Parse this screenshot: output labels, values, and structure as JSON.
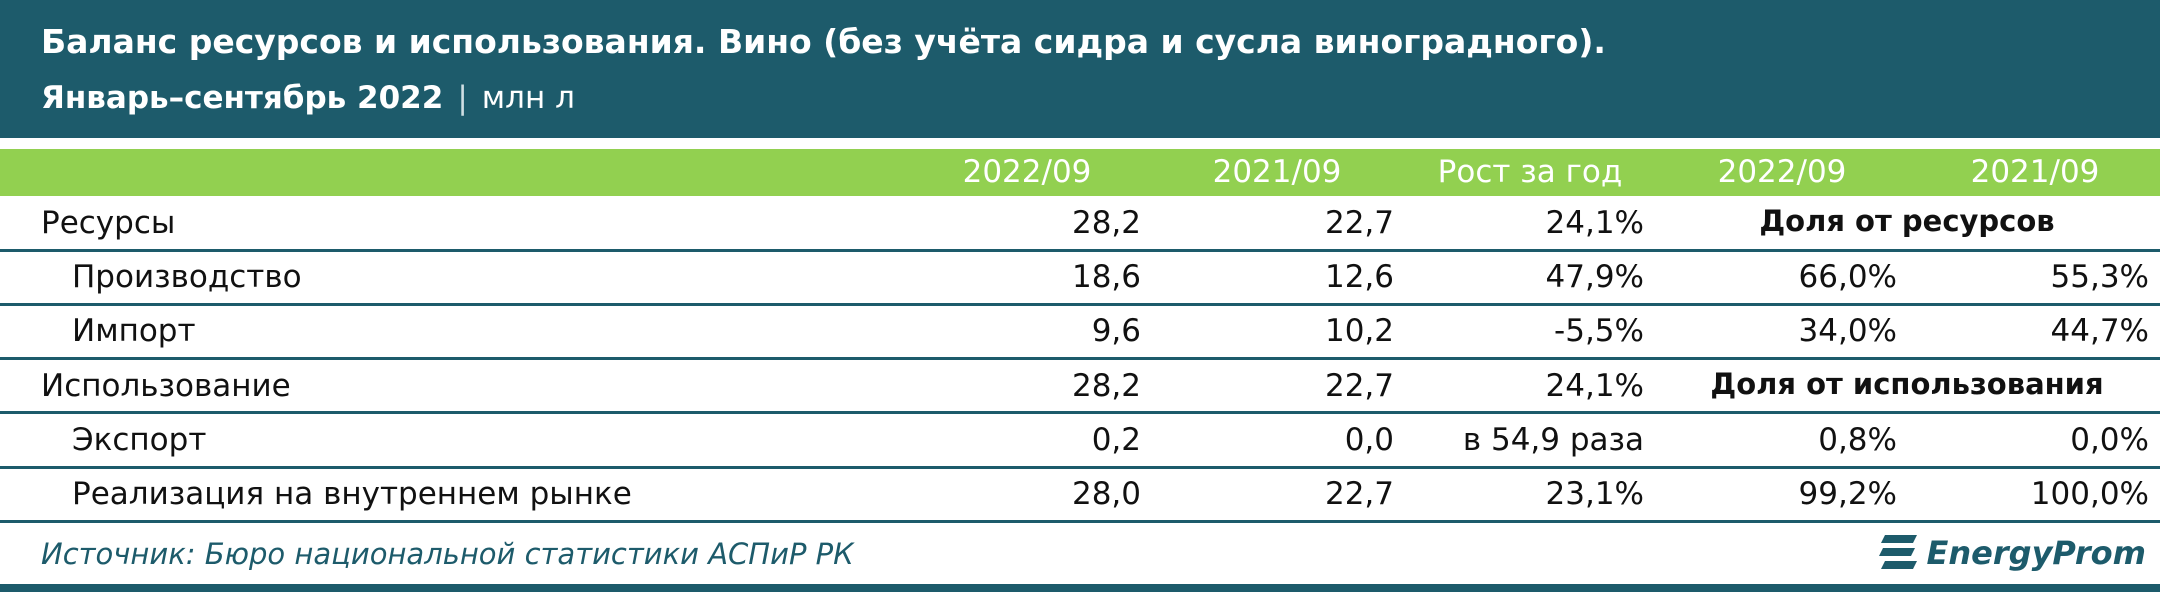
{
  "header": {
    "title": "Баланс ресурсов и использования. Вино (без учёта сидра и сусла виноградного).",
    "subtitle": "Январь–сентябрь 2022",
    "unit": "млн л"
  },
  "table": {
    "columns": [
      "2022/09",
      "2021/09",
      "Рост за год",
      "2022/09",
      "2021/09"
    ],
    "rows": [
      {
        "label": "Ресурсы",
        "cells": [
          "28,2",
          "22,7",
          "24,1%"
        ],
        "share_label": "Доля от ресурсов"
      },
      {
        "label": "Производство",
        "cells": [
          "18,6",
          "12,6",
          "47,9%",
          "66,0%",
          "55,3%"
        ]
      },
      {
        "label": "Импорт",
        "cells": [
          "9,6",
          "10,2",
          "-5,5%",
          "34,0%",
          "44,7%"
        ]
      },
      {
        "label": "Использование",
        "cells": [
          "28,2",
          "22,7",
          "24,1%"
        ],
        "share_label": "Доля от использования"
      },
      {
        "label": "Экспорт",
        "cells": [
          "0,2",
          "0,0",
          "в 54,9 раза",
          "0,8%",
          "0,0%"
        ]
      },
      {
        "label": "Реализация на внутреннем рынке",
        "cells": [
          "28,0",
          "22,7",
          "23,1%",
          "99,2%",
          "100,0%"
        ]
      }
    ]
  },
  "footer": {
    "source": "Источник: Бюро национальной статистики АСПиР РК",
    "logo": "EnergyProm"
  }
}
